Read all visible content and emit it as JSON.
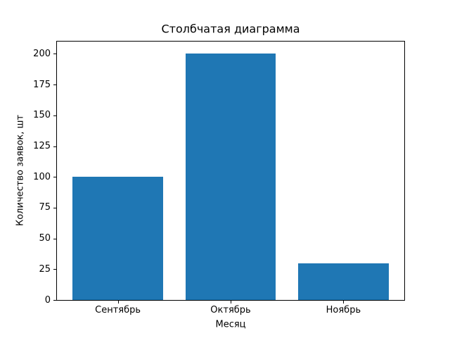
{
  "figure": {
    "background": "#ffffff"
  },
  "chart_data": {
    "type": "bar",
    "title": "Столбчатая диаграмма",
    "xlabel": "Месяц",
    "ylabel": "Количество заявок, шт",
    "categories": [
      "Сентябрь",
      "Октябрь",
      "Ноябрь"
    ],
    "values": [
      100,
      200,
      30
    ],
    "bar_color": "#1f77b4",
    "ylim": [
      0,
      210
    ],
    "yticks": [
      0,
      25,
      50,
      75,
      100,
      125,
      150,
      175,
      200
    ],
    "xlim": [
      -0.54,
      2.54
    ],
    "bar_width": 0.8,
    "grid": false,
    "legend": "none"
  }
}
